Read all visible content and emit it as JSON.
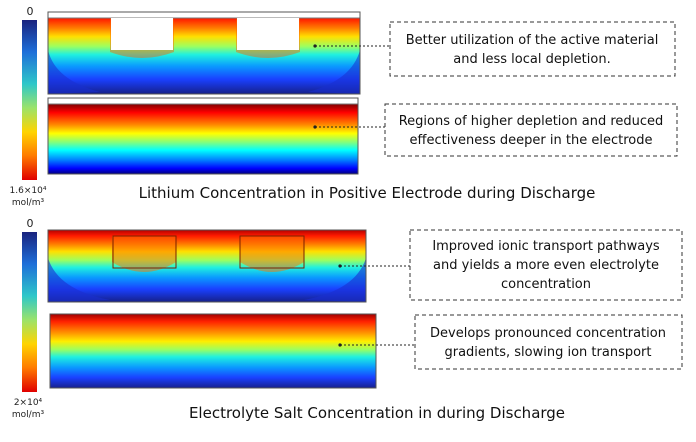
{
  "section1": {
    "scale_top": "0",
    "scale_bottom_line1": "1.6×10⁴",
    "scale_bottom_line2": "mol/m³",
    "caption": "Lithium Concentration in Positive Electrode during Discharge",
    "note1_line1": "Better utilization of the active material",
    "note1_line2": "and less local depletion.",
    "note2_line1": "Regions of higher depletion and reduced",
    "note2_line2": "effectiveness deeper in the electrode"
  },
  "section2": {
    "scale_top": "0",
    "scale_bottom_line1": "2×10⁴",
    "scale_bottom_line2": "mol/m³",
    "caption": "Electrolyte Salt Concentration in during Discharge",
    "note1_line1": "Improved ionic transport pathways",
    "note1_line2": "and yields a more even electrolyte",
    "note1_line3": "concentration",
    "note2_line1": "Develops pronounced concentration",
    "note2_line2": "gradients, slowing ion transport"
  },
  "colors": {
    "jet": [
      "#800000",
      "#ff0000",
      "#ff8000",
      "#ffff00",
      "#80ff80",
      "#00ffff",
      "#0080ff",
      "#0000ff",
      "#00008f"
    ],
    "frame": "#333333",
    "dash": "#555555"
  }
}
